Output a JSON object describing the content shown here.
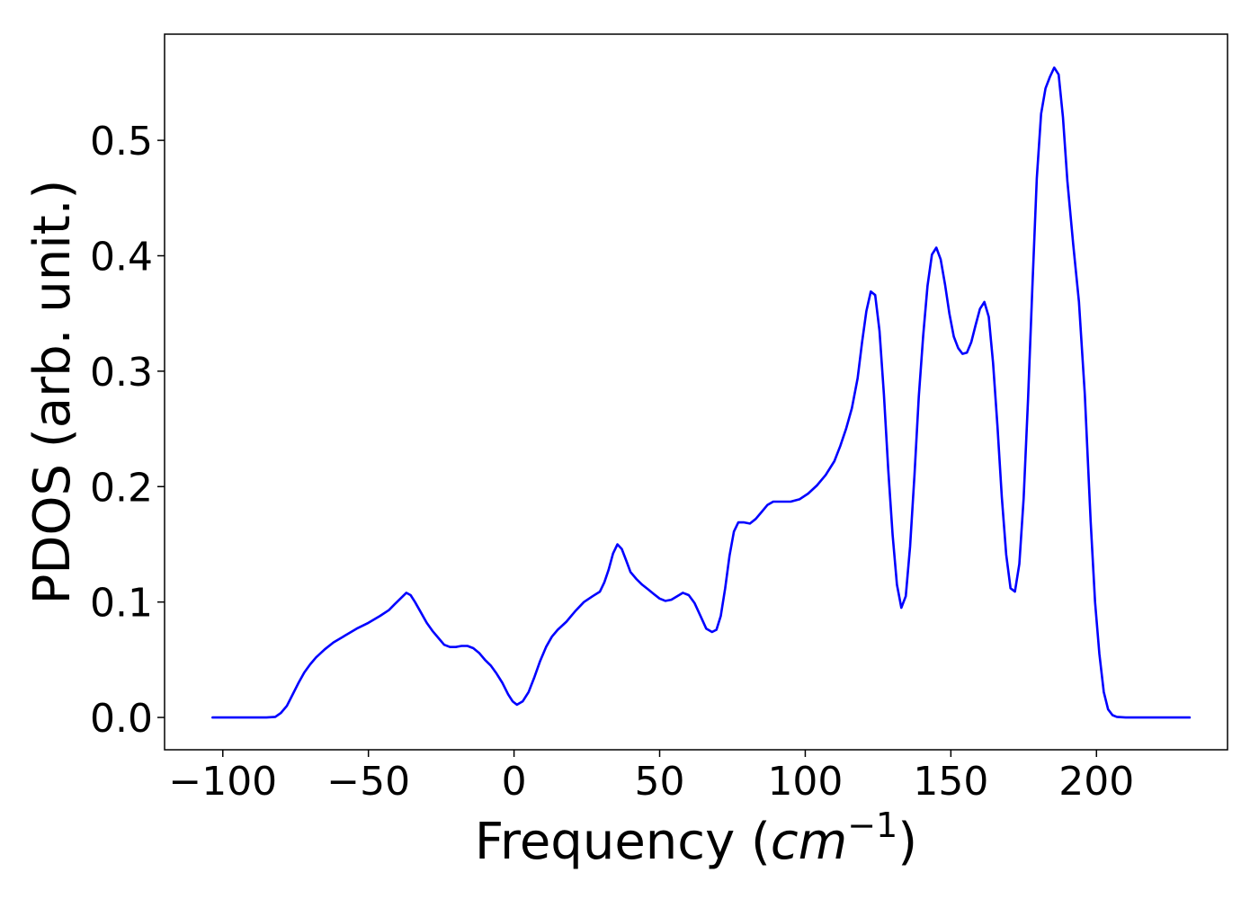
{
  "chart_data": {
    "type": "line",
    "title": "",
    "xlabel": {
      "prefix": "Frequency (",
      "unit": "cm",
      "exponent": "−1",
      "suffix": ")"
    },
    "ylabel": "PDOS (arb. unit.)",
    "xlim": [
      -120,
      245
    ],
    "ylim": [
      -0.028,
      0.592
    ],
    "xticks": [
      {
        "value": -100,
        "label": "−100"
      },
      {
        "value": -50,
        "label": "−50"
      },
      {
        "value": 0,
        "label": "0"
      },
      {
        "value": 50,
        "label": "50"
      },
      {
        "value": 100,
        "label": "100"
      },
      {
        "value": 150,
        "label": "150"
      },
      {
        "value": 200,
        "label": "200"
      }
    ],
    "yticks": [
      {
        "value": 0.0,
        "label": "0.0"
      },
      {
        "value": 0.1,
        "label": "0.1"
      },
      {
        "value": 0.2,
        "label": "0.2"
      },
      {
        "value": 0.3,
        "label": "0.3"
      },
      {
        "value": 0.4,
        "label": "0.4"
      },
      {
        "value": 0.5,
        "label": "0.5"
      }
    ],
    "grid": false,
    "legend": "none",
    "series": [
      {
        "color": "#0000ff",
        "points": [
          [
            -103.5,
            0.0
          ],
          [
            -95,
            0.0
          ],
          [
            -85,
            0.0
          ],
          [
            -82,
            0.0005
          ],
          [
            -80,
            0.004
          ],
          [
            -78,
            0.01
          ],
          [
            -76,
            0.02
          ],
          [
            -74,
            0.03
          ],
          [
            -72,
            0.039
          ],
          [
            -70,
            0.046
          ],
          [
            -68,
            0.052
          ],
          [
            -65,
            0.059
          ],
          [
            -62,
            0.065
          ],
          [
            -58,
            0.071
          ],
          [
            -54,
            0.077
          ],
          [
            -50,
            0.082
          ],
          [
            -46,
            0.088
          ],
          [
            -43,
            0.093
          ],
          [
            -41,
            0.098
          ],
          [
            -39,
            0.103
          ],
          [
            -37,
            0.108
          ],
          [
            -35.5,
            0.106
          ],
          [
            -34,
            0.1
          ],
          [
            -32,
            0.091
          ],
          [
            -30,
            0.082
          ],
          [
            -28,
            0.075
          ],
          [
            -26,
            0.069
          ],
          [
            -24,
            0.063
          ],
          [
            -22,
            0.061
          ],
          [
            -20,
            0.061
          ],
          [
            -18,
            0.062
          ],
          [
            -16,
            0.062
          ],
          [
            -14,
            0.06
          ],
          [
            -12,
            0.056
          ],
          [
            -10,
            0.05
          ],
          [
            -8,
            0.045
          ],
          [
            -6,
            0.038
          ],
          [
            -4,
            0.03
          ],
          [
            -2,
            0.02
          ],
          [
            -0.5,
            0.014
          ],
          [
            1,
            0.011
          ],
          [
            3,
            0.014
          ],
          [
            5,
            0.022
          ],
          [
            7,
            0.035
          ],
          [
            9,
            0.049
          ],
          [
            11,
            0.061
          ],
          [
            13,
            0.07
          ],
          [
            15,
            0.076
          ],
          [
            18,
            0.083
          ],
          [
            21,
            0.092
          ],
          [
            24,
            0.1
          ],
          [
            27,
            0.105
          ],
          [
            29.5,
            0.109
          ],
          [
            31,
            0.117
          ],
          [
            32.5,
            0.128
          ],
          [
            34,
            0.142
          ],
          [
            35.5,
            0.15
          ],
          [
            37,
            0.146
          ],
          [
            38.5,
            0.136
          ],
          [
            40,
            0.126
          ],
          [
            42,
            0.12
          ],
          [
            44,
            0.115
          ],
          [
            46,
            0.111
          ],
          [
            48,
            0.107
          ],
          [
            50,
            0.103
          ],
          [
            52,
            0.101
          ],
          [
            54,
            0.102
          ],
          [
            56,
            0.105
          ],
          [
            58,
            0.108
          ],
          [
            60,
            0.106
          ],
          [
            62,
            0.099
          ],
          [
            64,
            0.088
          ],
          [
            66,
            0.077
          ],
          [
            68,
            0.074
          ],
          [
            69.5,
            0.076
          ],
          [
            71,
            0.088
          ],
          [
            72.5,
            0.112
          ],
          [
            74,
            0.14
          ],
          [
            75.5,
            0.161
          ],
          [
            77,
            0.169
          ],
          [
            79,
            0.169
          ],
          [
            81,
            0.168
          ],
          [
            83,
            0.172
          ],
          [
            85,
            0.178
          ],
          [
            87,
            0.184
          ],
          [
            89,
            0.187
          ],
          [
            92,
            0.187
          ],
          [
            95,
            0.187
          ],
          [
            98,
            0.189
          ],
          [
            101,
            0.194
          ],
          [
            104,
            0.201
          ],
          [
            107,
            0.21
          ],
          [
            110,
            0.222
          ],
          [
            112,
            0.235
          ],
          [
            114,
            0.25
          ],
          [
            116,
            0.268
          ],
          [
            118,
            0.294
          ],
          [
            119.5,
            0.325
          ],
          [
            121,
            0.352
          ],
          [
            122.5,
            0.369
          ],
          [
            124,
            0.366
          ],
          [
            125.5,
            0.335
          ],
          [
            127,
            0.28
          ],
          [
            128.5,
            0.215
          ],
          [
            130,
            0.158
          ],
          [
            131.5,
            0.115
          ],
          [
            133,
            0.095
          ],
          [
            134.5,
            0.105
          ],
          [
            136,
            0.148
          ],
          [
            137.5,
            0.21
          ],
          [
            139,
            0.278
          ],
          [
            140.5,
            0.331
          ],
          [
            142,
            0.374
          ],
          [
            143.5,
            0.401
          ],
          [
            145,
            0.407
          ],
          [
            146.5,
            0.397
          ],
          [
            148,
            0.375
          ],
          [
            149.5,
            0.35
          ],
          [
            151,
            0.33
          ],
          [
            152.5,
            0.32
          ],
          [
            154,
            0.315
          ],
          [
            155.5,
            0.316
          ],
          [
            157,
            0.325
          ],
          [
            158.5,
            0.34
          ],
          [
            160,
            0.354
          ],
          [
            161.5,
            0.36
          ],
          [
            163,
            0.347
          ],
          [
            164.5,
            0.307
          ],
          [
            166,
            0.252
          ],
          [
            167.5,
            0.191
          ],
          [
            169,
            0.141
          ],
          [
            170.5,
            0.112
          ],
          [
            172,
            0.109
          ],
          [
            173.5,
            0.133
          ],
          [
            175,
            0.19
          ],
          [
            176.5,
            0.276
          ],
          [
            178,
            0.373
          ],
          [
            179.5,
            0.467
          ],
          [
            181,
            0.523
          ],
          [
            182.5,
            0.545
          ],
          [
            184,
            0.555
          ],
          [
            185.5,
            0.563
          ],
          [
            187,
            0.557
          ],
          [
            188.5,
            0.52
          ],
          [
            190,
            0.465
          ],
          [
            192,
            0.41
          ],
          [
            194,
            0.36
          ],
          [
            196,
            0.28
          ],
          [
            198,
            0.17
          ],
          [
            199.5,
            0.1
          ],
          [
            201,
            0.055
          ],
          [
            202.5,
            0.022
          ],
          [
            204,
            0.007
          ],
          [
            205.5,
            0.002
          ],
          [
            207,
            0.0005
          ],
          [
            210,
            0.0
          ],
          [
            220,
            0.0
          ],
          [
            232,
            0.0
          ]
        ]
      }
    ]
  }
}
